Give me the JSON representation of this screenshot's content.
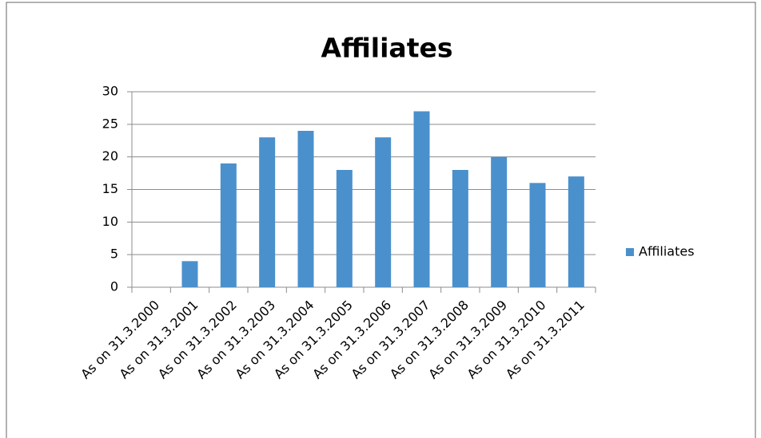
{
  "chart_data": {
    "type": "bar",
    "title": "Affiliates",
    "categories": [
      "As on 31.3.2000",
      "As on 31.3.2001",
      "As on 31.3.2002",
      "As on 31.3.2003",
      "As on 31.3.2004",
      "As on 31.3.2005",
      "As on 31.3.2006",
      "As on 31.3.2007",
      "As on 31.3.2008",
      "As on 31.3.2009",
      "As on 31.3.2010",
      "As on 31.3.2011"
    ],
    "series": [
      {
        "name": "Affiliates",
        "color": "#4a90cc",
        "values": [
          0,
          4,
          19,
          23,
          24,
          18,
          23,
          27,
          18,
          20,
          16,
          17
        ]
      }
    ],
    "ylim": [
      0,
      30
    ],
    "yticks": [
      0,
      5,
      10,
      15,
      20,
      25,
      30
    ],
    "grid": true,
    "legend": "right"
  }
}
